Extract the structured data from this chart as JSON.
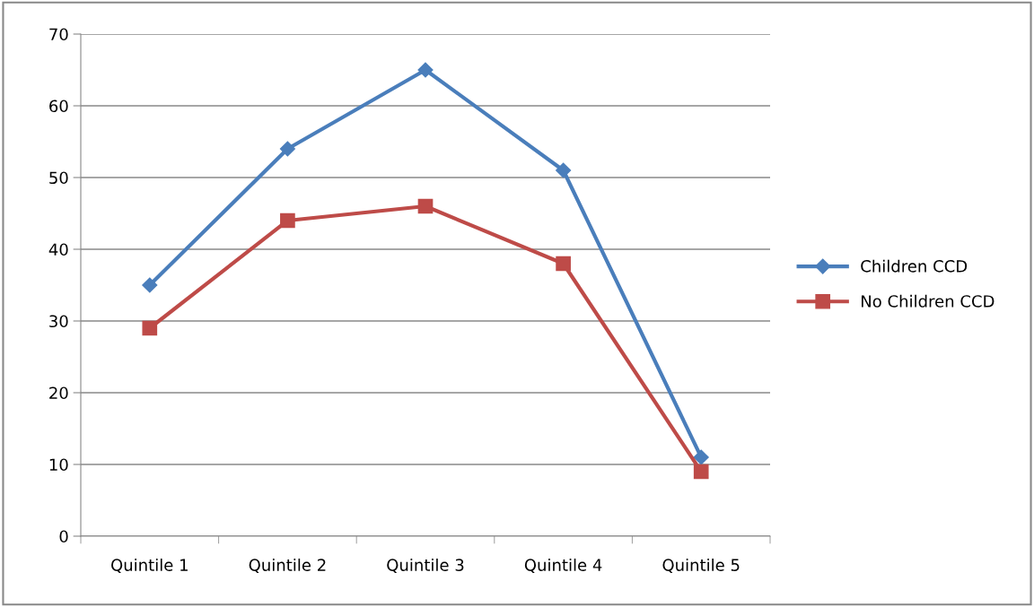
{
  "chart_data": {
    "type": "line",
    "categories": [
      "Quintile 1",
      "Quintile 2",
      "Quintile 3",
      "Quintile 4",
      "Quintile 5"
    ],
    "series": [
      {
        "name": "Children CCD",
        "color": "#4a7ebb",
        "marker": "diamond",
        "values": [
          35,
          54,
          65,
          51,
          11
        ]
      },
      {
        "name": "No Children CCD",
        "color": "#be4b48",
        "marker": "square",
        "values": [
          29,
          44,
          46,
          38,
          9
        ]
      }
    ],
    "ylim": [
      0,
      70
    ],
    "yticks": [
      0,
      10,
      20,
      30,
      40,
      50,
      60,
      70
    ],
    "grid": "y",
    "legend": "right",
    "line_style": "solid"
  }
}
